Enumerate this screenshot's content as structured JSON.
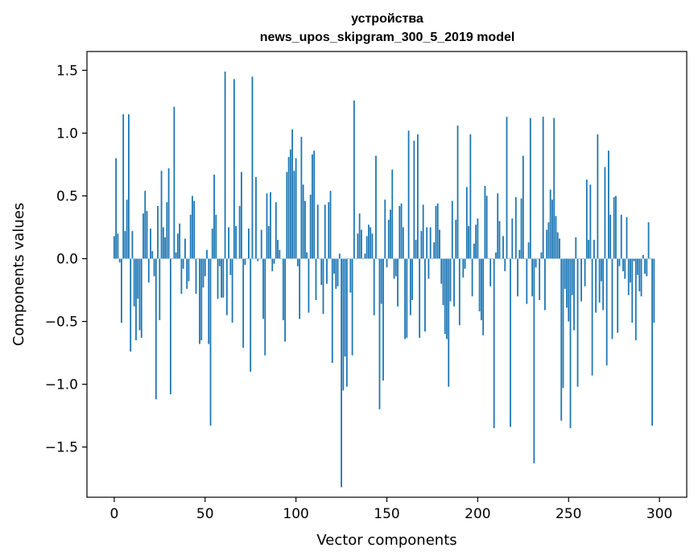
{
  "chart_data": {
    "type": "bar",
    "title": "устройства",
    "subtitle": "news_upos_skipgram_300_5_2019 model",
    "xlabel": "Vector components",
    "ylabel": "Components values",
    "xlim": [
      -15,
      315
    ],
    "ylim": [
      -1.9,
      1.65
    ],
    "x_ticks": [
      0,
      50,
      100,
      150,
      200,
      250,
      300
    ],
    "x_tick_labels": [
      "0",
      "50",
      "100",
      "150",
      "200",
      "250",
      "300"
    ],
    "y_ticks": [
      -1.5,
      -1.0,
      -0.5,
      0.0,
      0.5,
      1.0,
      1.5
    ],
    "y_tick_labels": [
      "−1.5",
      "−1.0",
      "−0.5",
      "0.0",
      "0.5",
      "1.0",
      "1.5"
    ],
    "bar_color": "#1f77b4",
    "grid": false,
    "values": [
      0.18,
      0.8,
      0.2,
      -0.03,
      -0.51,
      1.15,
      0.22,
      0.47,
      1.15,
      -0.74,
      0.22,
      -0.38,
      -0.65,
      -0.32,
      -0.57,
      -0.63,
      0.36,
      0.54,
      0.38,
      -0.19,
      0.24,
      0.06,
      -0.14,
      -1.12,
      0.42,
      -0.49,
      0.7,
      0.25,
      0.17,
      0.45,
      0.72,
      -1.08,
      0.0,
      1.21,
      0.05,
      0.2,
      0.28,
      -0.28,
      -0.08,
      0.16,
      -0.24,
      -0.18,
      0.35,
      0.5,
      0.46,
      -0.28,
      0.0,
      -0.68,
      -0.65,
      -0.23,
      -0.14,
      0.07,
      -0.68,
      -1.33,
      0.24,
      0.67,
      0.35,
      -0.32,
      -0.06,
      -0.31,
      -0.31,
      1.49,
      -0.45,
      0.25,
      -0.13,
      -0.51,
      1.43,
      0.26,
      0.0,
      0.42,
      0.69,
      -0.71,
      -0.05,
      0.0,
      0.24,
      -0.9,
      1.45,
      0.0,
      0.65,
      -0.02,
      0.0,
      0.23,
      -0.48,
      -0.77,
      0.52,
      0.26,
      0.53,
      -0.1,
      -0.04,
      0.45,
      0.15,
      0.07,
      0.0,
      -0.49,
      -0.66,
      0.69,
      0.81,
      0.87,
      1.03,
      0.7,
      0.8,
      -0.06,
      -0.48,
      0.97,
      0.59,
      0.46,
      0.05,
      -0.43,
      0.51,
      0.83,
      0.86,
      -0.33,
      0.43,
      0.0,
      -0.21,
      -0.44,
      0.43,
      -0.2,
      0.45,
      0.54,
      -0.83,
      -0.12,
      -0.24,
      -0.22,
      0.04,
      -1.82,
      -1.05,
      -0.78,
      -1.02,
      0.0,
      -0.27,
      -0.77,
      1.26,
      0.0,
      0.2,
      0.36,
      0.23,
      0.0,
      0.04,
      0.18,
      0.27,
      0.25,
      0.2,
      -0.45,
      0.82,
      0.0,
      -1.2,
      -0.36,
      -0.97,
      0.47,
      -0.07,
      0.31,
      0.39,
      0.71,
      -0.16,
      -0.14,
      -0.38,
      0.42,
      0.44,
      0.25,
      -0.64,
      -0.63,
      1.02,
      -0.45,
      -0.33,
      0.94,
      0.15,
      0.99,
      -0.63,
      0.22,
      0.43,
      -0.58,
      0.25,
      -0.16,
      0.25,
      0.0,
      0.13,
      0.42,
      0.44,
      0.23,
      -0.2,
      -0.37,
      -0.6,
      -0.64,
      -1.02,
      -0.34,
      0.46,
      -0.38,
      0.31,
      1.06,
      -0.53,
      0.0,
      -0.15,
      -0.08,
      0.57,
      0.26,
      0.99,
      -0.3,
      0.12,
      0.27,
      0.32,
      -0.42,
      -0.49,
      -0.61,
      0.58,
      0.5,
      0.0,
      -0.22,
      0.0,
      -1.35,
      0.05,
      0.52,
      0.3,
      0.0,
      0.18,
      -0.1,
      1.13,
      0.0,
      -1.34,
      0.32,
      0.0,
      0.49,
      -0.3,
      0.07,
      0.48,
      0.82,
      0.0,
      -0.36,
      0.13,
      1.12,
      -0.3,
      -1.63,
      -0.07,
      0.0,
      -0.33,
      0.05,
      1.13,
      -0.41,
      0.23,
      0.29,
      0.55,
      0.47,
      1.12,
      0.34,
      0.21,
      0.16,
      -1.29,
      -1.03,
      -0.24,
      -0.39,
      -0.5,
      -1.35,
      -0.29,
      -0.57,
      0.17,
      -1.02,
      0.0,
      -0.34,
      0.0,
      -0.22,
      0.63,
      0.15,
      0.59,
      -0.93,
      0.15,
      -0.43,
      0.99,
      -0.35,
      -0.18,
      -0.41,
      0.73,
      -0.85,
      0.86,
      0.35,
      -0.64,
      0.49,
      0.5,
      -0.59,
      -0.06,
      0.35,
      -0.1,
      -0.16,
      0.33,
      -0.29,
      -0.19,
      -0.51,
      -0.02,
      -0.65,
      -0.13,
      -0.26,
      -0.3,
      0.03,
      -0.12,
      -0.14,
      0.29,
      0.0,
      -1.33,
      -0.51
    ],
    "x_start": 0
  }
}
